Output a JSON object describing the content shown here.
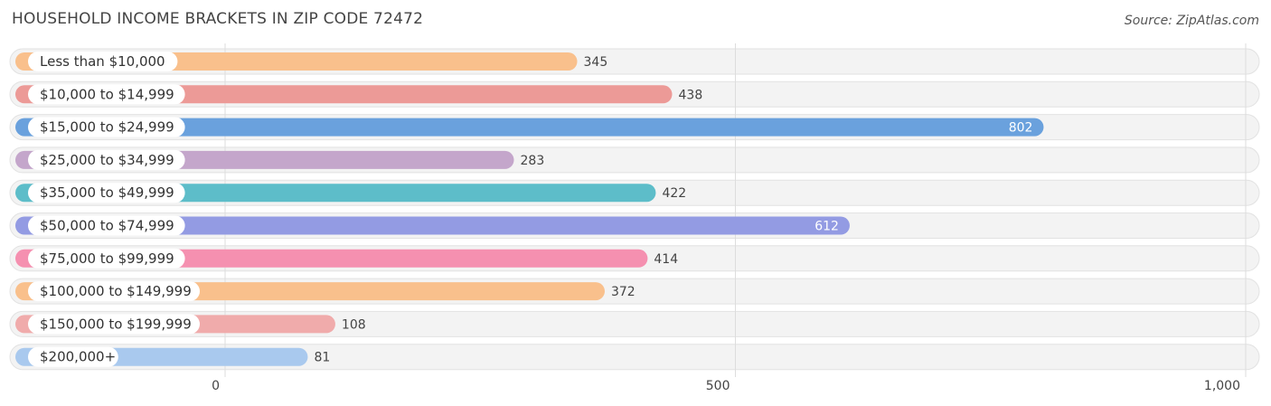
{
  "header": {
    "title": "HOUSEHOLD INCOME BRACKETS IN ZIP CODE 72472",
    "source": "Source: ZipAtlas.com"
  },
  "chart_data": {
    "type": "bar",
    "orientation": "horizontal",
    "title": "HOUSEHOLD INCOME BRACKETS IN ZIP CODE 72472",
    "xlabel": "",
    "ylabel": "",
    "xlim": [
      0,
      1000
    ],
    "grid": true,
    "categories": [
      "Less than $10,000",
      "$10,000 to $14,999",
      "$15,000 to $24,999",
      "$25,000 to $34,999",
      "$35,000 to $49,999",
      "$50,000 to $74,999",
      "$75,000 to $99,999",
      "$100,000 to $149,999",
      "$150,000 to $199,999",
      "$200,000+"
    ],
    "values": [
      345,
      438,
      802,
      283,
      422,
      612,
      414,
      372,
      108,
      81
    ],
    "value_labels": [
      "345",
      "438",
      "802",
      "283",
      "422",
      "612",
      "414",
      "372",
      "108",
      "81"
    ],
    "colors": [
      "#f9c08c",
      "#ec9a97",
      "#6aa1dd",
      "#c4a6cb",
      "#5dbdc9",
      "#939be3",
      "#f590b0",
      "#f9c08c",
      "#f0abab",
      "#a9c9ee"
    ],
    "ticks": [
      0,
      500,
      1000
    ],
    "tick_labels": [
      "0",
      "500",
      "1,000"
    ]
  }
}
